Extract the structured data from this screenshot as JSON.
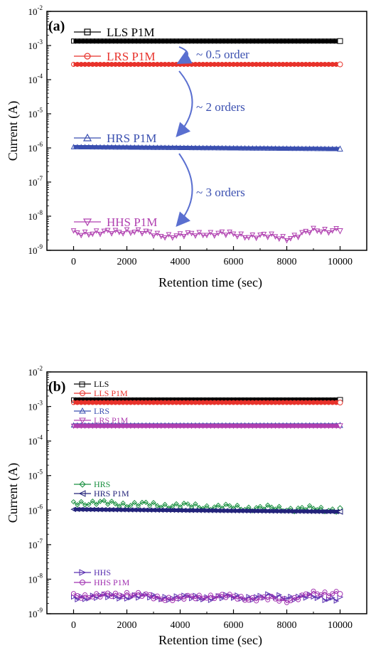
{
  "chart_data": [
    {
      "panel_label": "(a)",
      "type": "line",
      "xlabel": "Retention time (sec)",
      "ylabel": "Current (A)",
      "xlim": [
        -1000,
        11000
      ],
      "ylim_log10": [
        -9,
        -2
      ],
      "y_scale": "log",
      "x_ticks": [
        0,
        2000,
        4000,
        6000,
        8000,
        10000
      ],
      "y_tick_exponents": [
        -9,
        -8,
        -7,
        -6,
        -5,
        -4,
        -3,
        -2
      ],
      "y_tick_base": "10",
      "legend_position": "inline labels",
      "series": [
        {
          "name": "LLS P1M",
          "color": "#000000",
          "marker": "square",
          "x": [
            0,
            10000
          ],
          "y": [
            0.00135,
            0.00135
          ]
        },
        {
          "name": "LRS P1M",
          "color": "#e8322b",
          "marker": "circle",
          "x": [
            0,
            10000
          ],
          "y": [
            0.00028,
            0.00028
          ]
        },
        {
          "name": "HRS P1M",
          "color": "#3a4fb0",
          "marker": "triangle-up",
          "x": [
            0,
            10000
          ],
          "y": [
            1.08e-06,
            9.5e-07
          ]
        },
        {
          "name": "HHS P1M",
          "color": "#b040b0",
          "marker": "triangle-down",
          "x": [
            0,
            1000,
            2000,
            3000,
            4000,
            5000,
            6000,
            7000,
            8000,
            9000,
            10000
          ],
          "y": [
            3.4e-09,
            3.1e-09,
            3.8e-09,
            2.9e-09,
            2.6e-09,
            3.2e-09,
            2.8e-09,
            2.6e-09,
            2.3e-09,
            3.6e-09,
            4.2e-09
          ]
        }
      ],
      "annotations": [
        {
          "text": "~ 0.5 order",
          "color": "#3a4fb0"
        },
        {
          "text": "~ 2 orders",
          "color": "#3a4fb0"
        },
        {
          "text": "~ 3 orders",
          "color": "#3a4fb0"
        }
      ]
    },
    {
      "panel_label": "(b)",
      "type": "line",
      "xlabel": "Retention time (sec)",
      "ylabel": "Current (A)",
      "xlim": [
        -1000,
        11000
      ],
      "ylim_log10": [
        -9,
        -2
      ],
      "y_scale": "log",
      "x_ticks": [
        0,
        2000,
        4000,
        6000,
        8000,
        10000
      ],
      "y_tick_exponents": [
        -9,
        -8,
        -7,
        -6,
        -5,
        -4,
        -3,
        -2
      ],
      "y_tick_base": "10",
      "legend_position": "inline labels",
      "series": [
        {
          "name": "LLS",
          "color": "#000000",
          "marker": "square",
          "x": [
            0,
            10000
          ],
          "y": [
            0.00155,
            0.00155
          ]
        },
        {
          "name": "LLS P1M",
          "color": "#e8322b",
          "marker": "circle",
          "x": [
            0,
            10000
          ],
          "y": [
            0.0013,
            0.0013
          ]
        },
        {
          "name": "LRS",
          "color": "#3a4fb0",
          "marker": "triangle-up",
          "x": [
            0,
            10000
          ],
          "y": [
            0.00029,
            0.00029
          ]
        },
        {
          "name": "LRS P1M",
          "color": "#b040b0",
          "marker": "triangle-down",
          "x": [
            0,
            10000
          ],
          "y": [
            0.00027,
            0.00027
          ]
        },
        {
          "name": "HRS",
          "color": "#1a9040",
          "marker": "diamond",
          "x": [
            0,
            2000,
            4000,
            6000,
            8000,
            10000
          ],
          "y": [
            1.7e-06,
            1.5e-06,
            1.35e-06,
            1.2e-06,
            1.1e-06,
            1.05e-06
          ]
        },
        {
          "name": "HRS P1M",
          "color": "#23237a",
          "marker": "triangle-left",
          "x": [
            0,
            10000
          ],
          "y": [
            1.05e-06,
            9e-07
          ]
        },
        {
          "name": "HHS",
          "color": "#5a2fb0",
          "marker": "triangle-right",
          "x": [
            0,
            2000,
            4000,
            6000,
            8000,
            10000
          ],
          "y": [
            3e-09,
            3.2e-09,
            2.9e-09,
            3e-09,
            3.1e-09,
            2.8e-09
          ]
        },
        {
          "name": "HHS P1M",
          "color": "#a030b0",
          "marker": "hexagon",
          "x": [
            0,
            1000,
            2000,
            3000,
            4000,
            5000,
            6000,
            7000,
            8000,
            9000,
            10000
          ],
          "y": [
            3.5e-09,
            3.2e-09,
            3.9e-09,
            3e-09,
            2.7e-09,
            3.3e-09,
            3e-09,
            2.7e-09,
            2.5e-09,
            3.7e-09,
            4.3e-09
          ]
        }
      ]
    }
  ]
}
